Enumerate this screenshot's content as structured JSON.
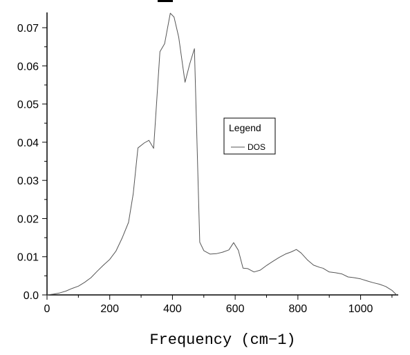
{
  "chart_data": {
    "type": "line",
    "xlabel": "Frequency (cm−1)",
    "ylabel": "",
    "xlim": [
      0,
      1120
    ],
    "ylim": [
      0,
      0.074
    ],
    "x_ticks": [
      "0",
      "200",
      "400",
      "600",
      "800",
      "1000"
    ],
    "x_tick_values": [
      0,
      200,
      400,
      600,
      800,
      1000
    ],
    "y_ticks": [
      "0.0",
      "0.01",
      "0.02",
      "0.03",
      "0.04",
      "0.05",
      "0.06",
      "0.07"
    ],
    "y_tick_values": [
      0,
      0.01,
      0.02,
      0.03,
      0.04,
      0.05,
      0.06,
      0.07
    ],
    "legend": {
      "title": "Legend",
      "entries": [
        "DOS"
      ],
      "position": "center-right"
    },
    "grid": false,
    "line_color": "#555555",
    "series": [
      {
        "name": "DOS",
        "x": [
          0,
          20,
          40,
          60,
          80,
          100,
          120,
          140,
          160,
          180,
          200,
          220,
          240,
          260,
          275,
          290,
          310,
          325,
          340,
          360,
          375,
          393,
          405,
          420,
          440,
          455,
          470,
          487,
          500,
          520,
          540,
          560,
          580,
          595,
          610,
          625,
          640,
          660,
          680,
          700,
          720,
          740,
          760,
          780,
          795,
          810,
          830,
          850,
          870,
          880,
          900,
          920,
          940,
          960,
          980,
          1000,
          1020,
          1040,
          1060,
          1080,
          1100,
          1115
        ],
        "values": [
          0,
          0.0002,
          0.0005,
          0.001,
          0.0017,
          0.0023,
          0.0033,
          0.0045,
          0.0062,
          0.0078,
          0.0093,
          0.0115,
          0.015,
          0.019,
          0.0265,
          0.0385,
          0.0398,
          0.0405,
          0.0384,
          0.0637,
          0.0658,
          0.0738,
          0.0728,
          0.0675,
          0.0557,
          0.0605,
          0.0645,
          0.0138,
          0.0116,
          0.0107,
          0.0108,
          0.0112,
          0.0118,
          0.0137,
          0.0117,
          0.007,
          0.0069,
          0.006,
          0.0065,
          0.0077,
          0.0088,
          0.0098,
          0.0107,
          0.0113,
          0.0119,
          0.011,
          0.0092,
          0.0078,
          0.0072,
          0.007,
          0.006,
          0.0058,
          0.0055,
          0.0047,
          0.0045,
          0.0042,
          0.0037,
          0.0032,
          0.0028,
          0.0022,
          0.0012,
          0
        ]
      }
    ]
  }
}
